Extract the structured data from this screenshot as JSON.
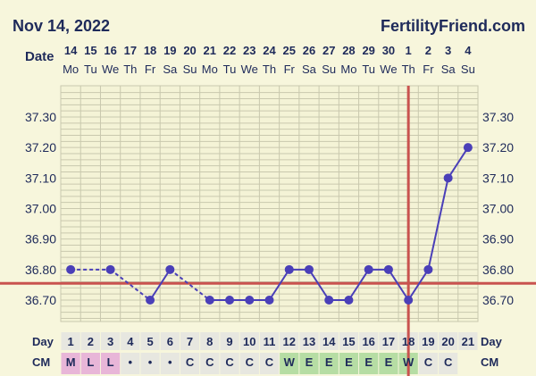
{
  "header": {
    "date": "Nov 14, 2022",
    "site": "FertilityFriend.com",
    "date_row_label": "Date"
  },
  "row_labels": {
    "day": "Day",
    "cm": "CM"
  },
  "chart_data": {
    "type": "line",
    "dates": [
      "14",
      "15",
      "16",
      "17",
      "18",
      "19",
      "20",
      "21",
      "22",
      "23",
      "24",
      "25",
      "26",
      "27",
      "28",
      "29",
      "30",
      "1",
      "2",
      "3",
      "4"
    ],
    "weekdays": [
      "Mo",
      "Tu",
      "We",
      "Th",
      "Fr",
      "Sa",
      "Su",
      "Mo",
      "Tu",
      "We",
      "Th",
      "Fr",
      "Sa",
      "Su",
      "Mo",
      "Tu",
      "We",
      "Th",
      "Fr",
      "Sa",
      "Su"
    ],
    "cycle_days": [
      1,
      2,
      3,
      4,
      5,
      6,
      7,
      8,
      9,
      10,
      11,
      12,
      13,
      14,
      15,
      16,
      17,
      18,
      19,
      20,
      21
    ],
    "temperatures": [
      36.8,
      null,
      36.8,
      null,
      36.7,
      36.8,
      null,
      36.7,
      36.7,
      36.7,
      36.7,
      36.8,
      36.8,
      36.7,
      36.7,
      36.8,
      36.8,
      36.7,
      36.8,
      37.1,
      37.2
    ],
    "y_ticks": [
      "37.30",
      "37.20",
      "37.10",
      "37.00",
      "36.90",
      "36.80",
      "36.70"
    ],
    "ylim": [
      36.62,
      37.38
    ],
    "coverline": 36.755,
    "ovulation_day": 18,
    "cervical_mucus": [
      "M",
      "L",
      "L",
      "•",
      "•",
      "•",
      "C",
      "C",
      "C",
      "C",
      "C",
      "W",
      "E",
      "E",
      "E",
      "E",
      "E",
      "W",
      "C",
      "C",
      ""
    ],
    "colors": {
      "line": "#4a3fb8",
      "coverline": "#c9534f",
      "grid": "#c9c8ae",
      "menses": "#e8b6d8",
      "fertile": "#b6dda4",
      "cell": "#e7e7e0"
    }
  }
}
